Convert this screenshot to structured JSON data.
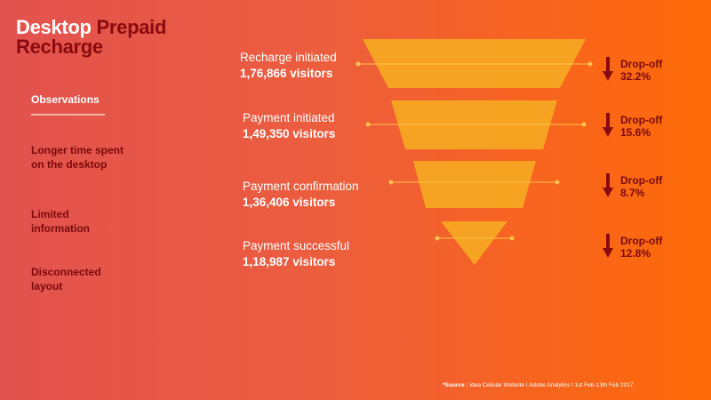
{
  "title": {
    "part1": "Desktop ",
    "part2": "Prepaid",
    "part3": "Recharge"
  },
  "sidebar": {
    "heading": "Observations",
    "items": [
      {
        "line1": "Longer time spent",
        "line2": "on the desktop"
      },
      {
        "line1": "Limited",
        "line2": "information"
      },
      {
        "line1": "Disconnected",
        "line2": "layout"
      }
    ]
  },
  "funnel": {
    "stages": [
      {
        "name": "Recharge initiated",
        "visitors": "1,76,866 visitors",
        "dropoff_label": "Drop-off",
        "dropoff": "32.2%"
      },
      {
        "name": "Payment initiated",
        "visitors": "1,49,350 visitors",
        "dropoff_label": "Drop-off",
        "dropoff": "15.6%"
      },
      {
        "name": "Payment confirmation",
        "visitors": "1,36,406 visitors",
        "dropoff_label": "Drop-off",
        "dropoff": "8.7%"
      },
      {
        "name": "Payment successful",
        "visitors": "1,18,987 visitors",
        "dropoff_label": "Drop-off",
        "dropoff": "12.8%"
      }
    ],
    "colors": {
      "funnel": "#f5a623",
      "dropoff": "#7a0a0c",
      "arrow": "#8b0a10"
    }
  },
  "source": {
    "label": "*Source : ",
    "text": "Idea Cellular Website   I   Adobe Analytics   I 1st Feb-13th Feb 2017"
  }
}
